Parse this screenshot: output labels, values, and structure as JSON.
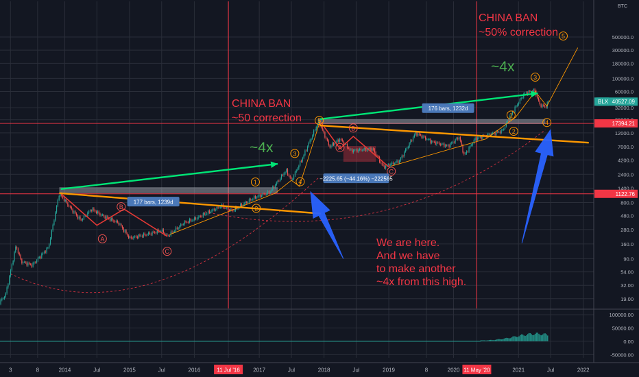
{
  "chart_data": {
    "type": "candlestick",
    "symbol": "BLX",
    "currency": "BTC",
    "y_scale": "log",
    "price_ticks": [
      "500000.0",
      "300000.0",
      "180000.0",
      "100000.0",
      "60000.0",
      "32000.0",
      "20000.0",
      "12000.0",
      "7000.0",
      "4200.0",
      "2400.0",
      "1400.0",
      "800.0",
      "480.0",
      "280.0",
      "160.0",
      "90.0",
      "54.00",
      "32.00",
      "19.00"
    ],
    "price_tick_values": [
      500000,
      300000,
      180000,
      100000,
      60000,
      32000,
      20000,
      12000,
      7000,
      4200,
      2400,
      1400,
      800,
      480,
      280,
      160,
      90,
      54,
      32,
      19
    ],
    "x_ticks": [
      "3",
      "8",
      "2014",
      "Jul",
      "2015",
      "Jul",
      "2016",
      "11 Jul '16",
      "2017",
      "Jul",
      "2018",
      "Jul",
      "2019",
      "8",
      "2020",
      "11 May '20",
      "2021",
      "Jul",
      "2022"
    ],
    "x_tick_dates": [
      "2013-03",
      "2013-08",
      "2014-01",
      "2014-07",
      "2015-01",
      "2015-07",
      "2016-01",
      "2016-07-11",
      "2017-01",
      "2017-07",
      "2018-01",
      "2018-07",
      "2019-01",
      "2019-08",
      "2020-01",
      "2020-05-11",
      "2021-01",
      "2021-07",
      "2022-01"
    ],
    "highlighted_x_ticks": [
      "11 Jul '16",
      "11 May '20"
    ],
    "last_price_label": {
      "symbol": "BLX",
      "value": "40527.09"
    },
    "horizontal_lines": [
      {
        "label": "17394.21",
        "value": 17394.21
      },
      {
        "label": "1122.76",
        "value": 1122.76
      }
    ],
    "halving_lines": [
      "2016-07-11",
      "2020-05-11"
    ],
    "price_path": [
      [
        "2012-12",
        13
      ],
      [
        "2013-02",
        22
      ],
      [
        "2013-04",
        150
      ],
      [
        "2013-05",
        80
      ],
      [
        "2013-07",
        70
      ],
      [
        "2013-10",
        140
      ],
      [
        "2013-12",
        1150
      ],
      [
        "2014-02",
        650
      ],
      [
        "2014-04",
        400
      ],
      [
        "2014-06",
        620
      ],
      [
        "2014-08",
        480
      ],
      [
        "2014-11",
        360
      ],
      [
        "2015-01",
        200
      ],
      [
        "2015-04",
        230
      ],
      [
        "2015-07",
        270
      ],
      [
        "2015-08",
        215
      ],
      [
        "2015-11",
        360
      ],
      [
        "2016-01",
        420
      ],
      [
        "2016-06",
        700
      ],
      [
        "2016-08",
        580
      ],
      [
        "2016-12",
        960
      ],
      [
        "2017-03",
        1200
      ],
      [
        "2017-06",
        2800
      ],
      [
        "2017-07",
        1900
      ],
      [
        "2017-09",
        4500
      ],
      [
        "2017-12",
        19000
      ],
      [
        "2018-02",
        7000
      ],
      [
        "2018-04",
        9500
      ],
      [
        "2018-06",
        6000
      ],
      [
        "2018-10",
        6500
      ],
      [
        "2018-12",
        3200
      ],
      [
        "2019-03",
        4000
      ],
      [
        "2019-06",
        12000
      ],
      [
        "2019-09",
        8500
      ],
      [
        "2019-12",
        7200
      ],
      [
        "2020-02",
        10200
      ],
      [
        "2020-03",
        5000
      ],
      [
        "2020-05",
        9500
      ],
      [
        "2020-08",
        11500
      ],
      [
        "2020-10",
        13000
      ],
      [
        "2020-12",
        28000
      ],
      [
        "2021-02",
        55000
      ],
      [
        "2021-04",
        63000
      ],
      [
        "2021-05",
        36000
      ],
      [
        "2021-06",
        33000
      ],
      [
        "2021-06-20",
        40527
      ]
    ],
    "volume_axis_ticks": [
      "100000.00",
      "50000.00",
      "0.00",
      "-50000.00"
    ],
    "volume_axis_values": [
      100000,
      50000,
      0,
      -50000
    ],
    "annotations": [
      {
        "text": "CHINA BAN",
        "color": "#f23645"
      },
      {
        "text": "~50 correction",
        "color": "#f23645"
      },
      {
        "text": "CHINA BAN",
        "color": "#f23645"
      },
      {
        "text": "~50% correction",
        "color": "#f23645"
      },
      {
        "text": "~4x",
        "color": "#4caf50"
      },
      {
        "text": "~4x",
        "color": "#4caf50"
      },
      {
        "text": "We are here.",
        "color": "#f23645"
      },
      {
        "text": "And we have",
        "color": "#f23645"
      },
      {
        "text": "to make another",
        "color": "#f23645"
      },
      {
        "text": "~4x from this high.",
        "color": "#f23645"
      }
    ],
    "measure_labels": [
      {
        "text": "177 bars, 1239d"
      },
      {
        "text": "176 bars, 1232d"
      },
      {
        "text": "−2225.65 (−44.16%) −222565"
      }
    ],
    "wave_labels_orange": [
      "1",
      "2",
      "3",
      "4",
      "5",
      "1",
      "2",
      "3",
      "4",
      "5"
    ],
    "wave_labels_red": [
      "A",
      "B",
      "C",
      "A",
      "B",
      "C"
    ],
    "colors": {
      "background": "#131722",
      "grid": "#2a2e39",
      "axis_text": "#b2b5be",
      "candle_up": "#26a69a",
      "candle_down": "#ef5350",
      "annotation_red": "#f23645",
      "annotation_green": "#4caf50",
      "arrow_blue": "#2962ff",
      "trend_orange": "#ff9800",
      "last_price_bg": "#26a69a",
      "hline_bg": "#f23645"
    }
  }
}
